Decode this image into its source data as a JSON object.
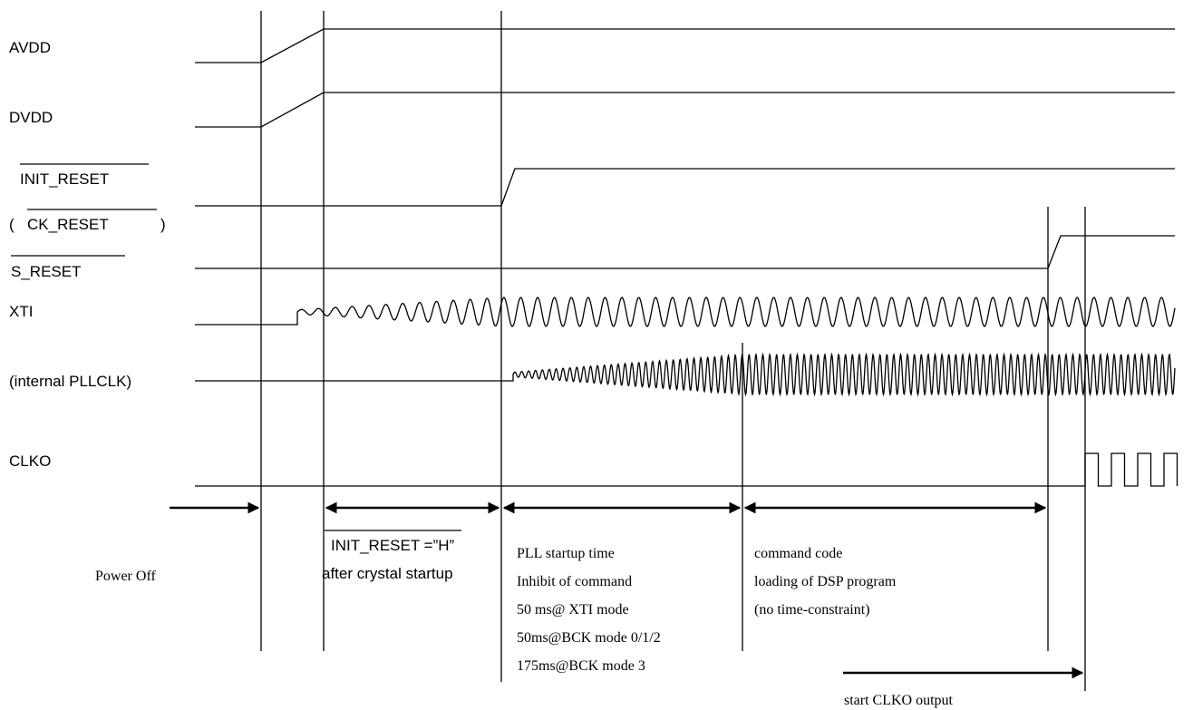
{
  "signals": {
    "avdd": "AVDD",
    "dvdd": "DVDD",
    "init_reset": "INIT_RESET",
    "ck_reset_open": "(",
    "ck_reset": "CK_RESET",
    "ck_reset_close": ")",
    "s_reset": "S_RESET",
    "xti": "XTI",
    "pllclk": "(internal PLLCLK)",
    "clko": "CLKO"
  },
  "phases": {
    "power_off": "Power Off",
    "init_cond_signal": "INIT_RESET",
    "init_cond_value": " =”H”",
    "init_cond_after": "after crystal startup",
    "pll": [
      "PLL startup time",
      "Inhibit of command",
      "50 ms@ XTI mode",
      "50ms@BCK mode 0/1/2",
      "175ms@BCK mode 3"
    ],
    "command": [
      "command code",
      "loading of DSP program",
      "(no time-constraint)"
    ],
    "clko_start": "start CLKO output"
  }
}
